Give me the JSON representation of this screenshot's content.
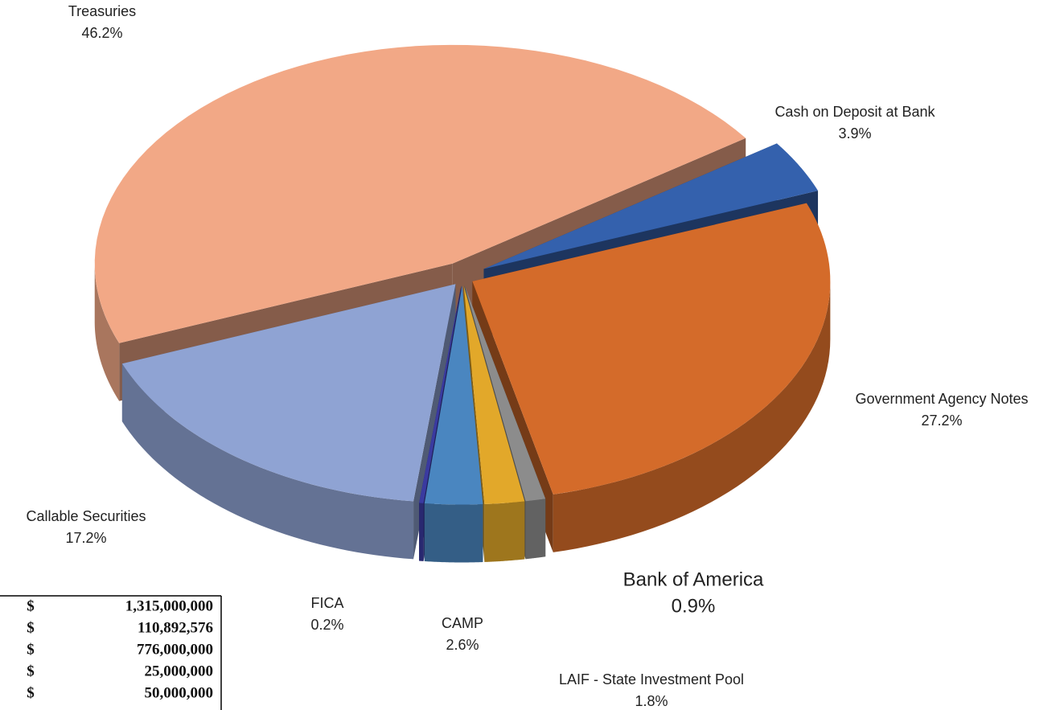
{
  "chart_data": {
    "type": "pie3d",
    "categories": [
      "Cash on Deposit at Bank",
      "Government Agency Notes",
      "Bank of America",
      "LAIF - State Investment Pool",
      "CAMP",
      "FICA",
      "Callable Securities",
      "Treasuries"
    ],
    "values": [
      3.9,
      27.2,
      0.9,
      1.8,
      2.6,
      0.2,
      17.2,
      46.2
    ],
    "value_labels": [
      "3.9%",
      "27.2%",
      "0.9%",
      "1.8%",
      "2.6%",
      "0.2%",
      "17.2%",
      "46.2%"
    ],
    "colors": [
      "#3461ad",
      "#d46b2a",
      "#8c8c8c",
      "#e2a82a",
      "#4a86c0",
      "#3a3aa0",
      "#8fa3d3",
      "#f2a886"
    ]
  },
  "table": {
    "rows": [
      [
        "$",
        "1,315,000,000"
      ],
      [
        "$",
        "110,892,576"
      ],
      [
        "$",
        "776,000,000"
      ],
      [
        "$",
        "25,000,000"
      ],
      [
        "$",
        "50,000,000"
      ]
    ]
  }
}
